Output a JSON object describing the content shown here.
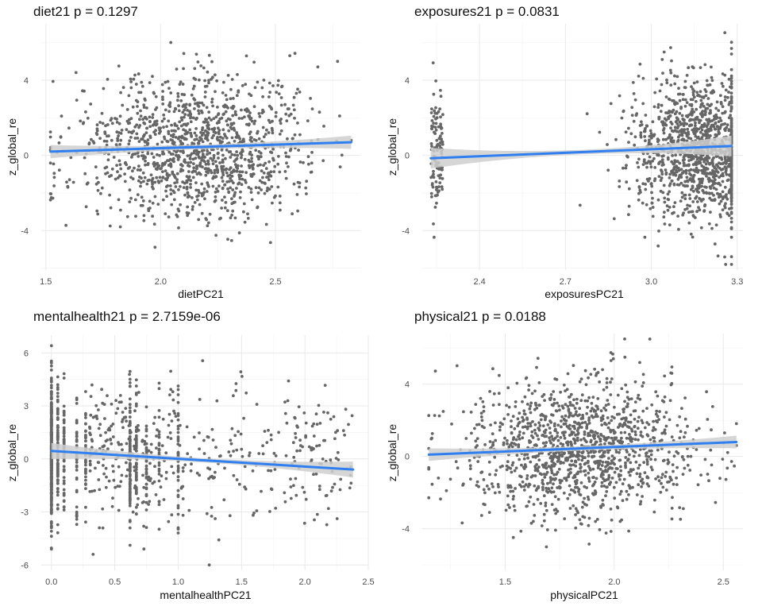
{
  "figure": {
    "point_color": "#666666",
    "fit_color": "#2f7ff0",
    "ribbon_color": "#cfcfcf"
  },
  "chart_data": [
    {
      "type": "scatter",
      "title": "diet21 p = 0.1297",
      "xlabel": "dietPC21",
      "ylabel": "z_global_re",
      "xlim": [
        1.48,
        2.87
      ],
      "ylim": [
        -6.1,
        7.0
      ],
      "xticks": [
        1.5,
        2.0,
        2.5
      ],
      "xtick_labels": [
        "1.5",
        "2.0",
        "2.5"
      ],
      "yticks": [
        -4,
        0,
        4
      ],
      "ytick_labels": [
        "-4",
        "0",
        "4"
      ],
      "point_count": 1300,
      "x_range": [
        1.52,
        2.83
      ],
      "x_center": 2.15,
      "x_spread": 0.25,
      "y_mean": 0.4,
      "y_sd": 1.85,
      "fit_line": {
        "x": [
          1.52,
          2.83
        ],
        "y": [
          0.2,
          0.7
        ]
      },
      "ribbon_halfwidth": {
        "ends": 0.35,
        "center": 0.12
      },
      "grid": true
    },
    {
      "type": "scatter",
      "title": "exposures21 p = 0.0831",
      "xlabel": "exposuresPC21",
      "ylabel": "z_global_re",
      "xlim": [
        2.2,
        3.32
      ],
      "ylim": [
        -6.1,
        7.0
      ],
      "xticks": [
        2.4,
        2.7,
        3.0,
        3.3
      ],
      "xtick_labels": [
        "2.4",
        "2.7",
        "3.0",
        "3.3"
      ],
      "yticks": [
        -4,
        0,
        4
      ],
      "ytick_labels": [
        "-4",
        "0",
        "4"
      ],
      "point_count": 1300,
      "x_range": [
        2.23,
        3.28
      ],
      "x_center": 3.18,
      "x_spread": 0.12,
      "y_mean": 0.3,
      "y_sd": 1.9,
      "fit_line": {
        "x": [
          2.23,
          3.28
        ],
        "y": [
          -0.15,
          0.5
        ]
      },
      "ribbon_halfwidth": {
        "ends": 0.55,
        "center": 0.12
      },
      "grid": true
    },
    {
      "type": "scatter",
      "title": "mentalhealth21 p = 2.7159e-06",
      "xlabel": "mentalhealthPC21",
      "ylabel": "z_global_re",
      "xlim": [
        -0.08,
        2.5
      ],
      "ylim": [
        -6.3,
        7.0
      ],
      "xticks": [
        0.0,
        0.5,
        1.0,
        1.5,
        2.0,
        2.5
      ],
      "xtick_labels": [
        "0.0",
        "0.5",
        "1.0",
        "1.5",
        "2.0",
        "2.5"
      ],
      "yticks": [
        -6,
        -3,
        0,
        3,
        6
      ],
      "ytick_labels": [
        "-6",
        "-3",
        "0",
        "3",
        "6"
      ],
      "point_count": 1300,
      "x_range": [
        0.0,
        2.38
      ],
      "x_columns": [
        0.0,
        0.05,
        0.1,
        0.2,
        0.27,
        0.62,
        0.67,
        0.75,
        0.85,
        1.0
      ],
      "y_mean": 0.3,
      "y_sd": 1.9,
      "fit_line": {
        "x": [
          0.0,
          2.38
        ],
        "y": [
          0.45,
          -0.6
        ]
      },
      "ribbon_halfwidth": {
        "ends": 0.45,
        "center": 0.12
      },
      "grid": true
    },
    {
      "type": "scatter",
      "title": "physical21 p = 0.0188",
      "xlabel": "physicalPC21",
      "ylabel": "z_global_re",
      "xlim": [
        1.12,
        2.59
      ],
      "ylim": [
        -6.3,
        6.8
      ],
      "xticks": [
        1.5,
        2.0,
        2.5
      ],
      "xtick_labels": [
        "1.5",
        "2.0",
        "2.5"
      ],
      "yticks": [
        -4,
        0,
        4
      ],
      "ytick_labels": [
        "-4",
        "0",
        "4"
      ],
      "point_count": 1300,
      "x_range": [
        1.15,
        2.56
      ],
      "x_center": 1.85,
      "x_spread": 0.26,
      "y_mean": 0.45,
      "y_sd": 1.9,
      "fit_line": {
        "x": [
          1.15,
          2.56
        ],
        "y": [
          0.1,
          0.8
        ]
      },
      "ribbon_halfwidth": {
        "ends": 0.35,
        "center": 0.12
      },
      "grid": true
    }
  ]
}
